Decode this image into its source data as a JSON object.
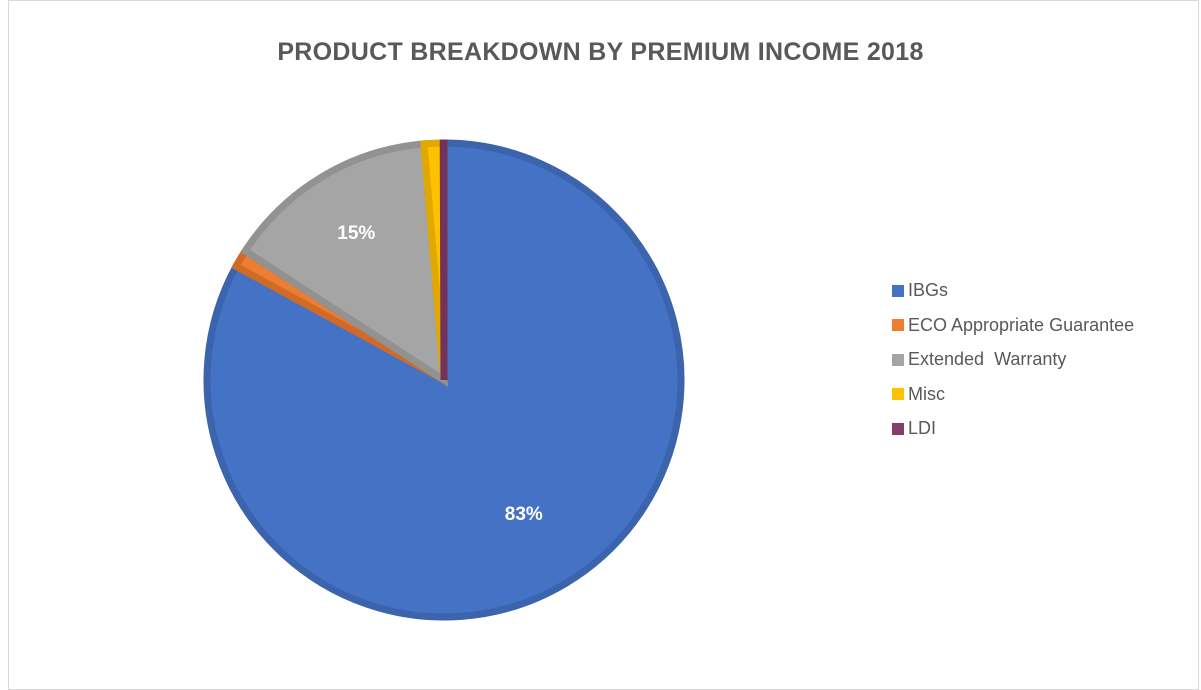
{
  "chart_data": {
    "type": "pie",
    "title": "PRODUCT BREAKDOWN BY PREMIUM INCOME 2018",
    "legend_position": "right",
    "categories": [
      "IBGs",
      "ECO Appropriate Guarantee",
      "Extended  Warranty",
      "Misc",
      "LDI"
    ],
    "values": [
      83,
      1.2,
      14.5,
      1.3,
      0.05
    ],
    "data_labels": [
      "83%",
      "",
      "15%",
      "",
      ""
    ],
    "colors": [
      "#4472c4",
      "#ed7d31",
      "#a5a5a5",
      "#ffc000",
      "#843c69"
    ],
    "border_colors": [
      "#3b64ad",
      "#d06a27",
      "#929292",
      "#e0a800",
      "#733259"
    ]
  }
}
